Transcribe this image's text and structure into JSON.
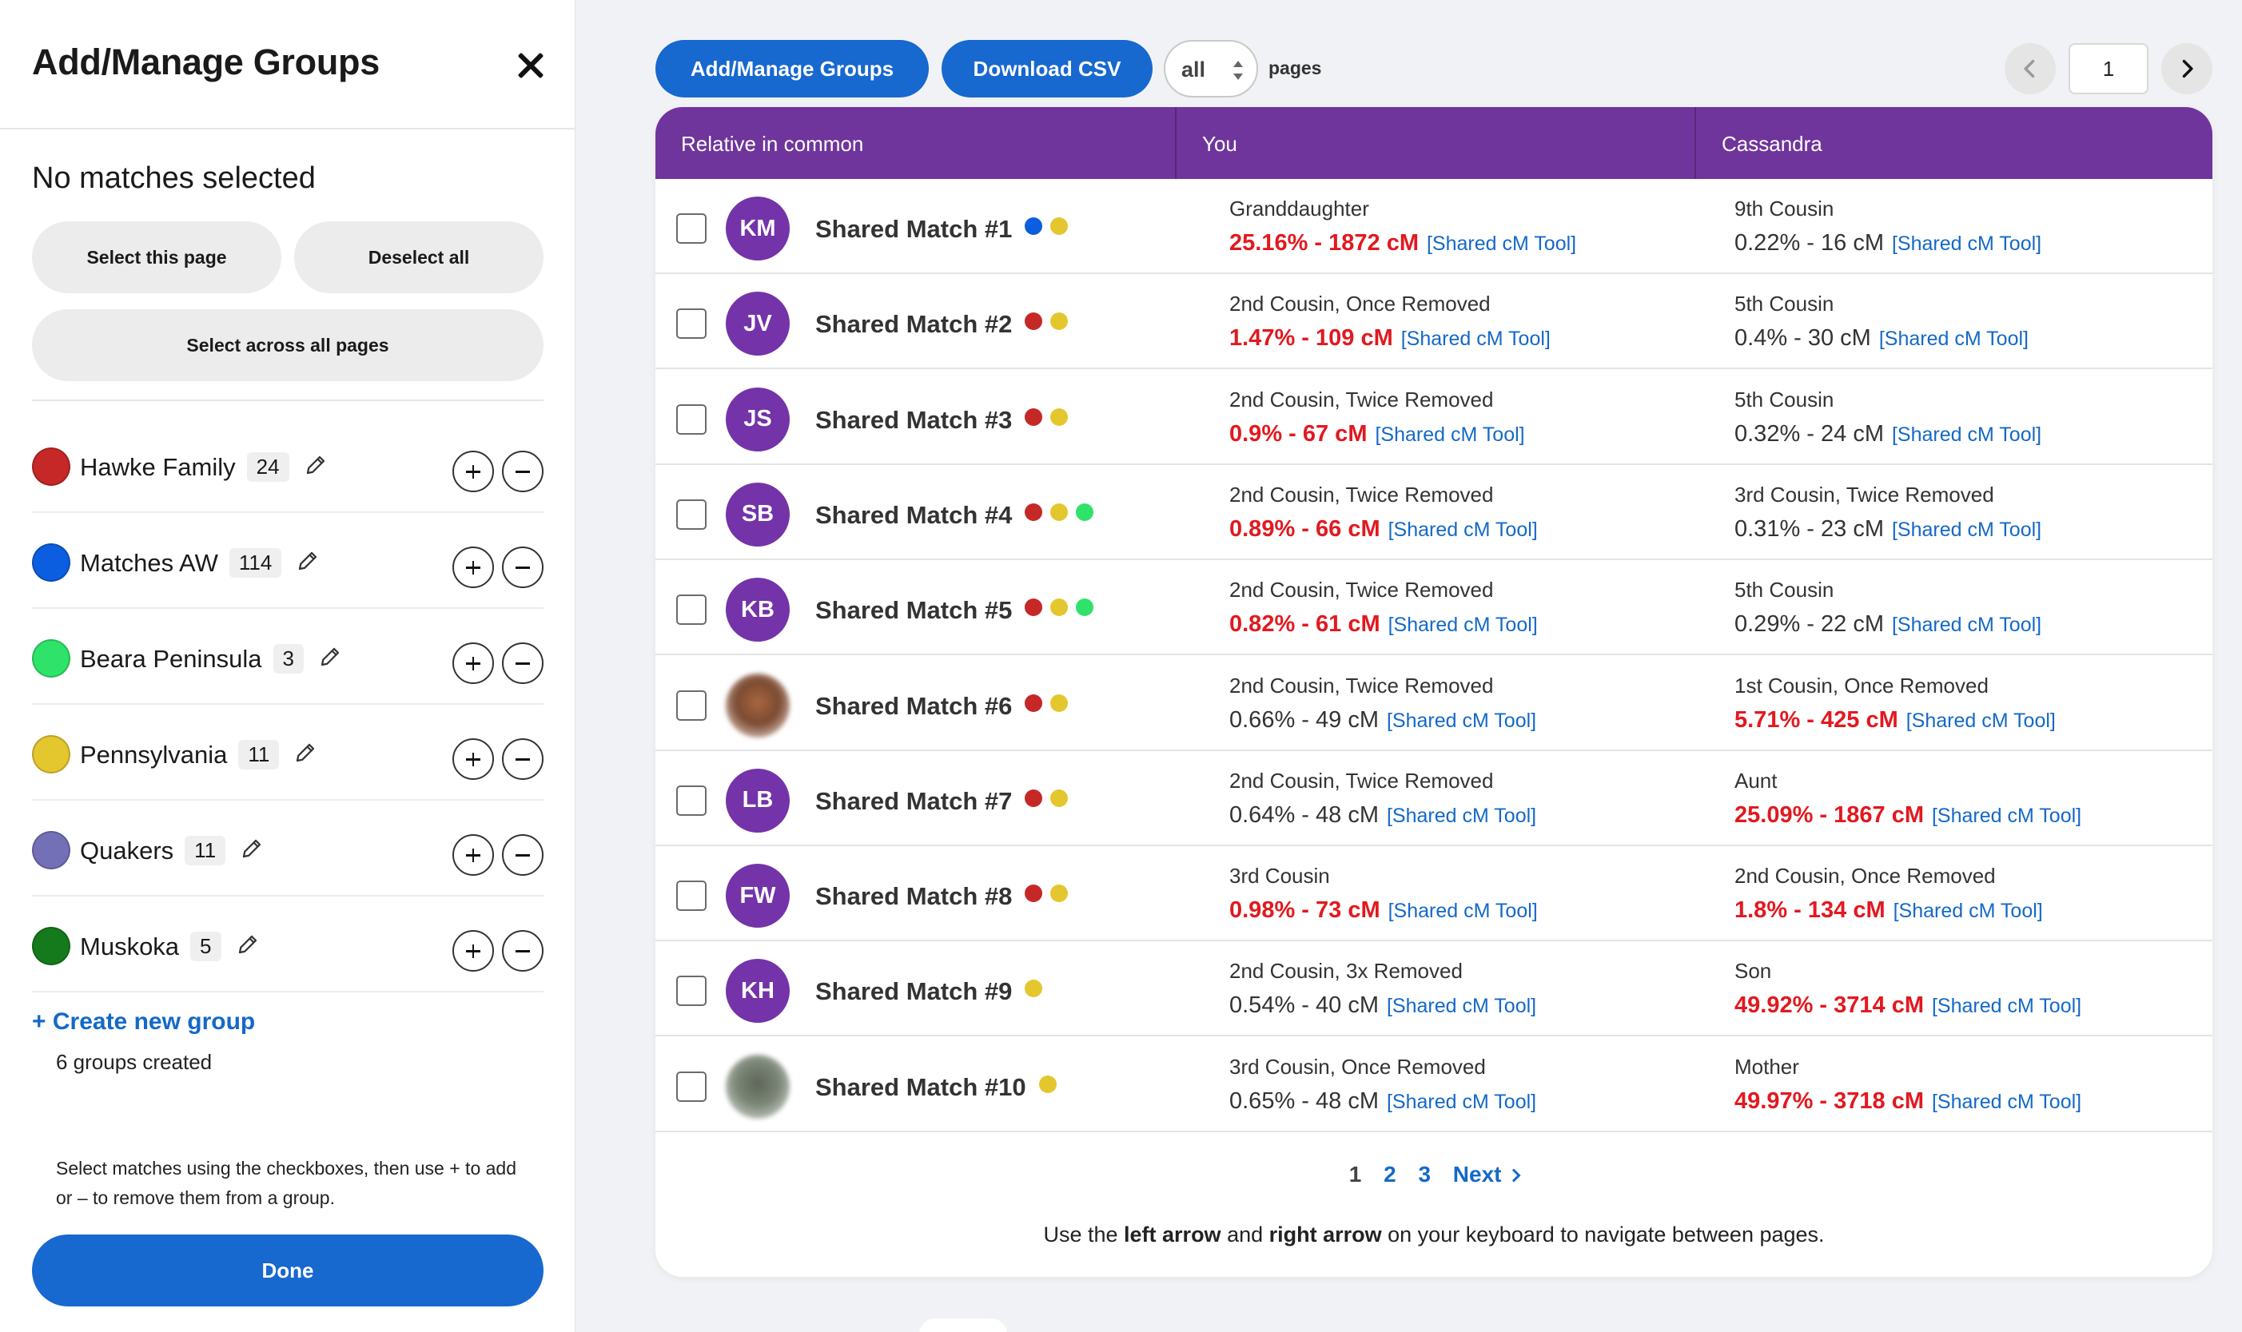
{
  "sidebar": {
    "title": "Add/Manage Groups",
    "close_icon": "close-icon",
    "selection_status": "No matches selected",
    "select_page_label": "Select this page",
    "deselect_all_label": "Deselect all",
    "select_all_pages_label": "Select across all pages",
    "groups": [
      {
        "name": "Hawke Family",
        "count": "24",
        "color": "#c62828"
      },
      {
        "name": "Matches AW",
        "count": "114",
        "color": "#0b5ee0"
      },
      {
        "name": "Beara Peninsula",
        "count": "3",
        "color": "#2fe36a"
      },
      {
        "name": "Pennsylvania",
        "count": "11",
        "color": "#e4c62e"
      },
      {
        "name": "Quakers",
        "count": "11",
        "color": "#7470b8"
      },
      {
        "name": "Muskoka",
        "count": "5",
        "color": "#157a1c"
      }
    ],
    "create_group_label": "+ Create new group",
    "groups_created": "6 groups created",
    "help_text": "Select matches using the checkboxes, then use + to add or – to remove them from a group.",
    "done_label": "Done"
  },
  "toolbar": {
    "manage_groups_label": "Add/Manage Groups",
    "download_csv_label": "Download CSV",
    "pages_value": "all",
    "pages_label": "pages",
    "current_page": "1"
  },
  "table": {
    "headers": [
      "Relative in common",
      "You",
      "Cassandra"
    ],
    "tool_label": "[Shared cM Tool]",
    "rows": [
      {
        "initials": "KM",
        "name": "Shared Match #1",
        "dots": [
          "#0b5ee0",
          "#e4c62e"
        ],
        "you_rel": "Granddaughter",
        "you_cm": "25.16% - 1872 cM",
        "you_hi": true,
        "cas_rel": "9th Cousin",
        "cas_cm": "0.22% - 16 cM",
        "cas_hi": false
      },
      {
        "initials": "JV",
        "name": "Shared Match #2",
        "dots": [
          "#c62828",
          "#e4c62e"
        ],
        "you_rel": "2nd Cousin, Once Removed",
        "you_cm": "1.47% - 109 cM",
        "you_hi": true,
        "cas_rel": "5th Cousin",
        "cas_cm": "0.4% - 30 cM",
        "cas_hi": false
      },
      {
        "initials": "JS",
        "name": "Shared Match #3",
        "dots": [
          "#c62828",
          "#e4c62e"
        ],
        "you_rel": "2nd Cousin, Twice Removed",
        "you_cm": "0.9% - 67 cM",
        "you_hi": true,
        "cas_rel": "5th Cousin",
        "cas_cm": "0.32% - 24 cM",
        "cas_hi": false
      },
      {
        "initials": "SB",
        "name": "Shared Match #4",
        "dots": [
          "#c62828",
          "#e4c62e",
          "#2fe36a"
        ],
        "you_rel": "2nd Cousin, Twice Removed",
        "you_cm": "0.89% - 66 cM",
        "you_hi": true,
        "cas_rel": "3rd Cousin, Twice Removed",
        "cas_cm": "0.31% - 23 cM",
        "cas_hi": false
      },
      {
        "initials": "KB",
        "name": "Shared Match #5",
        "dots": [
          "#c62828",
          "#e4c62e",
          "#2fe36a"
        ],
        "you_rel": "2nd Cousin, Twice Removed",
        "you_cm": "0.82% - 61 cM",
        "you_hi": true,
        "cas_rel": "5th Cousin",
        "cas_cm": "0.29% - 22 cM",
        "cas_hi": false
      },
      {
        "initials": "",
        "photo": "photo1",
        "name": "Shared Match #6",
        "dots": [
          "#c62828",
          "#e4c62e"
        ],
        "you_rel": "2nd Cousin, Twice Removed",
        "you_cm": "0.66% - 49 cM",
        "you_hi": false,
        "cas_rel": "1st Cousin, Once Removed",
        "cas_cm": "5.71% - 425 cM",
        "cas_hi": true
      },
      {
        "initials": "LB",
        "name": "Shared Match #7",
        "dots": [
          "#c62828",
          "#e4c62e"
        ],
        "you_rel": "2nd Cousin, Twice Removed",
        "you_cm": "0.64% - 48 cM",
        "you_hi": false,
        "cas_rel": "Aunt",
        "cas_cm": "25.09% - 1867 cM",
        "cas_hi": true
      },
      {
        "initials": "FW",
        "name": "Shared Match #8",
        "dots": [
          "#c62828",
          "#e4c62e"
        ],
        "you_rel": "3rd Cousin",
        "you_cm": "0.98% - 73 cM",
        "you_hi": true,
        "cas_rel": "2nd Cousin, Once Removed",
        "cas_cm": "1.8% - 134 cM",
        "cas_hi": true
      },
      {
        "initials": "KH",
        "name": "Shared Match #9",
        "dots": [
          "#e4c62e"
        ],
        "you_rel": "2nd Cousin, 3x Removed",
        "you_cm": "0.54% - 40 cM",
        "you_hi": false,
        "cas_rel": "Son",
        "cas_cm": "49.92% - 3714 cM",
        "cas_hi": true
      },
      {
        "initials": "",
        "photo": "photo2",
        "name": "Shared Match #10",
        "dots": [
          "#e4c62e"
        ],
        "you_rel": "3rd Cousin, Once Removed",
        "you_cm": "0.65% - 48 cM",
        "you_hi": false,
        "cas_rel": "Mother",
        "cas_cm": "49.97% - 3718 cM",
        "cas_hi": true
      }
    ]
  },
  "pagination": {
    "pages": [
      "1",
      "2",
      "3"
    ],
    "current": "1",
    "next_label": "Next"
  },
  "keyboard_hint": {
    "part1": "Use the ",
    "left": "left arrow",
    "part2": " and ",
    "right": "right arrow",
    "part3": " on your keyboard to navigate between pages."
  }
}
